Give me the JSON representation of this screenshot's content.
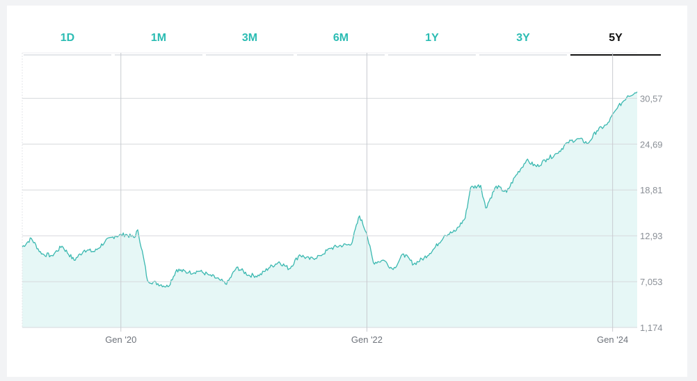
{
  "tabs": [
    {
      "label": "1D",
      "active": false
    },
    {
      "label": "1M",
      "active": false
    },
    {
      "label": "3M",
      "active": false
    },
    {
      "label": "6M",
      "active": false
    },
    {
      "label": "1Y",
      "active": false
    },
    {
      "label": "3Y",
      "active": false
    },
    {
      "label": "5Y",
      "active": true
    }
  ],
  "colors": {
    "line": "#3ab8b0",
    "fill": "#e6f7f6",
    "tab_accent": "#2bbcb3",
    "active_tab": "#111111",
    "grid": "#d6d8dc"
  },
  "chart_data": {
    "type": "area",
    "title": "",
    "xlabel": "",
    "ylabel": "",
    "y_ticks": [
      "1,174",
      "7,053",
      "12,93",
      "18,81",
      "24,69",
      "30,57"
    ],
    "y_tick_values": [
      1.174,
      7.053,
      12.93,
      18.81,
      24.69,
      30.57
    ],
    "x_ticks": [
      {
        "label": "Gen '20",
        "date": "2020-01-01"
      },
      {
        "label": "Gen '22",
        "date": "2022-01-01"
      },
      {
        "label": "Gen '24",
        "date": "2024-01-01"
      }
    ],
    "x_range": [
      "2019-03-14",
      "2024-03-14"
    ],
    "ylim": [
      1.174,
      36.4
    ],
    "grid": true,
    "y_axis_position": "right",
    "series": [
      {
        "points": [
          [
            "2019-03-14",
            11.5
          ],
          [
            "2019-04-10",
            12.6
          ],
          [
            "2019-05-10",
            10.6
          ],
          [
            "2019-06-10",
            10.4
          ],
          [
            "2019-07-10",
            11.6
          ],
          [
            "2019-08-15",
            9.8
          ],
          [
            "2019-09-15",
            11.1
          ],
          [
            "2019-10-15",
            10.9
          ],
          [
            "2019-11-15",
            12.2
          ],
          [
            "2019-12-15",
            12.9
          ],
          [
            "2020-01-15",
            13.1
          ],
          [
            "2020-02-10",
            12.7
          ],
          [
            "2020-02-20",
            13.7
          ],
          [
            "2020-03-08",
            10.2
          ],
          [
            "2020-03-20",
            7.2
          ],
          [
            "2020-04-20",
            6.8
          ],
          [
            "2020-05-20",
            6.4
          ],
          [
            "2020-06-15",
            8.6
          ],
          [
            "2020-07-20",
            8.2
          ],
          [
            "2020-08-20",
            8.4
          ],
          [
            "2020-09-20",
            7.9
          ],
          [
            "2020-10-20",
            7.3
          ],
          [
            "2020-11-10",
            6.7
          ],
          [
            "2020-12-10",
            8.9
          ],
          [
            "2021-01-15",
            7.9
          ],
          [
            "2021-02-15",
            7.8
          ],
          [
            "2021-03-15",
            8.8
          ],
          [
            "2021-04-15",
            9.6
          ],
          [
            "2021-05-15",
            8.7
          ],
          [
            "2021-06-15",
            10.5
          ],
          [
            "2021-07-15",
            9.9
          ],
          [
            "2021-08-15",
            10.4
          ],
          [
            "2021-09-15",
            11.3
          ],
          [
            "2021-10-15",
            11.7
          ],
          [
            "2021-11-15",
            11.8
          ],
          [
            "2021-12-10",
            15.5
          ],
          [
            "2021-12-31",
            13.3
          ],
          [
            "2022-01-20",
            9.5
          ],
          [
            "2022-02-20",
            9.8
          ],
          [
            "2022-03-20",
            8.6
          ],
          [
            "2022-04-20",
            10.6
          ],
          [
            "2022-05-20",
            9.3
          ],
          [
            "2022-06-20",
            10.1
          ],
          [
            "2022-07-20",
            11.3
          ],
          [
            "2022-08-20",
            13.0
          ],
          [
            "2022-09-20",
            13.5
          ],
          [
            "2022-10-20",
            15.2
          ],
          [
            "2022-11-05",
            19.1
          ],
          [
            "2022-12-05",
            19.4
          ],
          [
            "2022-12-20",
            16.5
          ],
          [
            "2023-01-20",
            19.3
          ],
          [
            "2023-02-20",
            18.5
          ],
          [
            "2023-03-20",
            20.7
          ],
          [
            "2023-04-20",
            22.6
          ],
          [
            "2023-05-20",
            21.8
          ],
          [
            "2023-06-20",
            22.8
          ],
          [
            "2023-07-20",
            23.5
          ],
          [
            "2023-08-20",
            24.9
          ],
          [
            "2023-09-20",
            25.4
          ],
          [
            "2023-10-20",
            24.8
          ],
          [
            "2023-11-15",
            26.4
          ],
          [
            "2023-12-15",
            27.2
          ],
          [
            "2024-01-15",
            29.3
          ],
          [
            "2024-02-15",
            30.9
          ],
          [
            "2024-03-14",
            31.4
          ]
        ]
      }
    ]
  }
}
